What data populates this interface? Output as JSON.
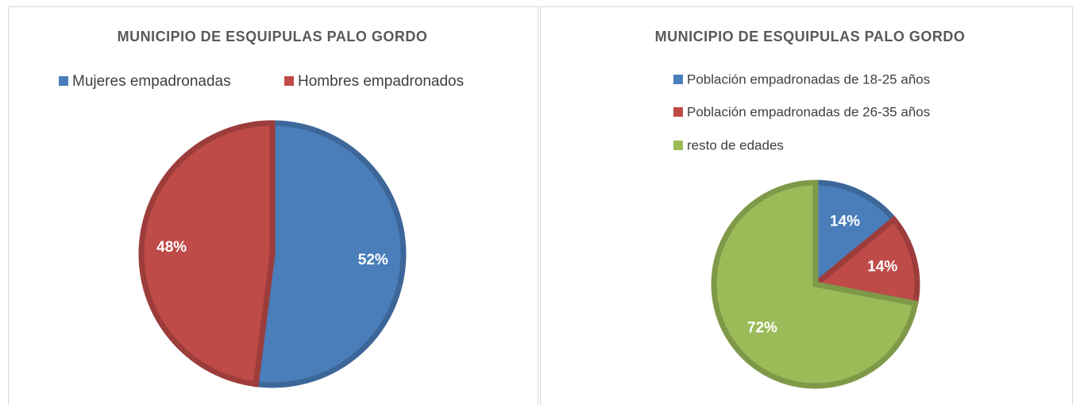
{
  "chart_data": [
    {
      "type": "pie",
      "title": "MUNICIPIO DE ESQUIPULAS PALO GORDO",
      "categories": [
        "Mujeres empadronadas",
        "Hombres empadronados"
      ],
      "values": [
        52,
        48
      ],
      "value_labels": [
        "52%",
        "48%"
      ],
      "colors": [
        "#4a7ebb",
        "#be4b48"
      ],
      "legend": "top"
    },
    {
      "type": "pie",
      "title": "MUNICIPIO DE ESQUIPULAS PALO GORDO",
      "categories": [
        "Población empadronadas de 18-25 años",
        "Población empadronadas de 26-35 años",
        "resto de edades"
      ],
      "values": [
        14,
        14,
        72
      ],
      "value_labels": [
        "14%",
        "14%",
        "72%"
      ],
      "colors": [
        "#4a7ebb",
        "#be4b48",
        "#9bbb59"
      ],
      "legend": "top"
    }
  ]
}
